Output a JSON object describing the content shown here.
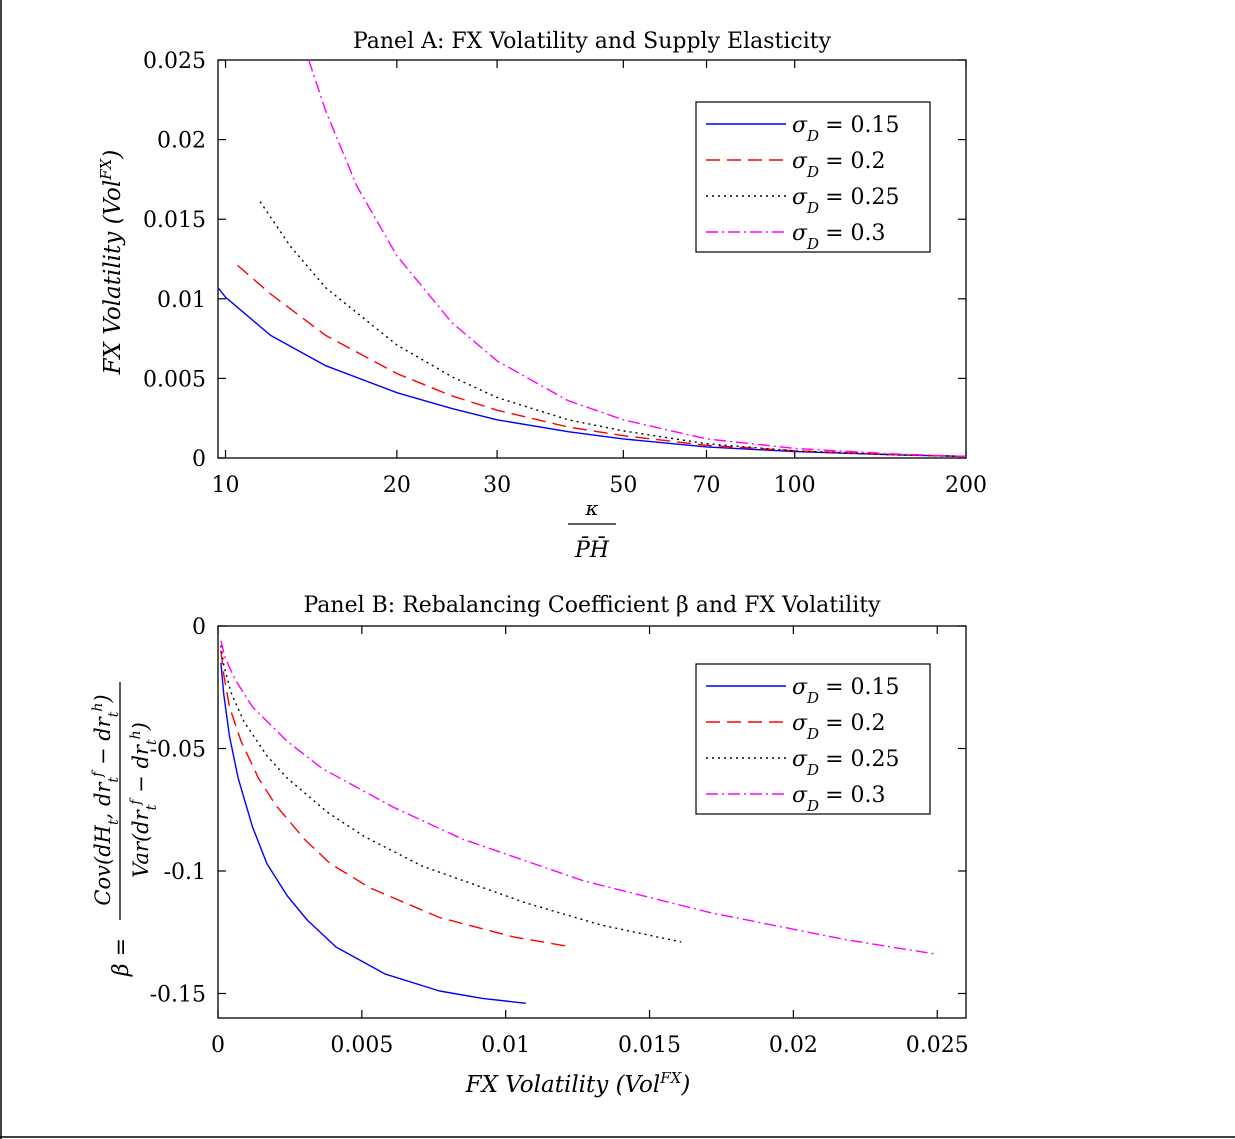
{
  "chart_data": [
    {
      "type": "line",
      "title": "Panel A: FX Volatility and Supply Elasticity",
      "xlabel": "κ / P̄H̄",
      "ylabel": "FX Volatility (Vol^FX)",
      "x_scale": "log",
      "xlim": [
        9.7,
        200
      ],
      "ylim": [
        0,
        0.025
      ],
      "xticks": [
        10,
        20,
        30,
        50,
        70,
        100,
        200
      ],
      "xtick_labels": [
        "10",
        "20",
        "30",
        "50",
        "70",
        "100",
        "200"
      ],
      "yticks": [
        0,
        0.005,
        0.01,
        0.015,
        0.02,
        0.025
      ],
      "ytick_labels": [
        "0",
        "0.005",
        "0.01",
        "0.015",
        "0.02",
        "0.025"
      ],
      "grid": false,
      "legend_position": "top-right",
      "series": [
        {
          "name": "σD = 0.15",
          "color": "#0000ff",
          "dash": "solid",
          "x": [
            9.7,
            10,
            12,
            15,
            20,
            25,
            30,
            40,
            50,
            70,
            100,
            150,
            200
          ],
          "y": [
            0.0107,
            0.0101,
            0.0077,
            0.0058,
            0.0041,
            0.0031,
            0.0024,
            0.00165,
            0.0012,
            0.0007,
            0.0004,
            0.0002,
            0.0001
          ]
        },
        {
          "name": "σD = 0.2",
          "color": "#ff0000",
          "dash": "dashed",
          "x": [
            10.5,
            12,
            15,
            20,
            25,
            30,
            40,
            50,
            70,
            100,
            150,
            200
          ],
          "y": [
            0.0121,
            0.0103,
            0.0077,
            0.0053,
            0.0039,
            0.003,
            0.00195,
            0.0014,
            0.0008,
            0.00045,
            0.0002,
            0.0001
          ]
        },
        {
          "name": "σD = 0.25",
          "color": "#000000",
          "dash": "dotted",
          "x": [
            11.5,
            13,
            15,
            20,
            25,
            30,
            40,
            50,
            70,
            100,
            150,
            200
          ],
          "y": [
            0.0161,
            0.0133,
            0.0107,
            0.0071,
            0.0051,
            0.0038,
            0.0024,
            0.0017,
            0.0009,
            0.00045,
            0.0002,
            0.0001
          ]
        },
        {
          "name": "σD = 0.3",
          "color": "#ff00ff",
          "dash": "dashdot",
          "x": [
            14,
            15,
            17,
            20,
            25,
            30,
            40,
            50,
            70,
            100,
            150,
            200
          ],
          "y": [
            0.025,
            0.0218,
            0.0171,
            0.0127,
            0.0085,
            0.0061,
            0.0036,
            0.0024,
            0.0012,
            0.0006,
            0.00025,
            0.0001
          ]
        }
      ]
    },
    {
      "type": "line",
      "title": "Panel B: Rebalancing Coefficient β and FX Volatility",
      "xlabel": "FX Volatility (Vol^FX)",
      "ylabel": "β = Cov(dHt, drt^f − drt^h) / Var(drt^f − drt^h)",
      "xlim": [
        0,
        0.026
      ],
      "ylim": [
        -0.16,
        0
      ],
      "xticks": [
        0,
        0.005,
        0.01,
        0.015,
        0.02,
        0.025
      ],
      "xtick_labels": [
        "0",
        "0.005",
        "0.01",
        "0.015",
        "0.02",
        "0.025"
      ],
      "yticks": [
        0,
        -0.05,
        -0.1,
        -0.15
      ],
      "ytick_labels": [
        "0",
        "-0.05",
        "-0.1",
        "-0.15"
      ],
      "grid": false,
      "legend_position": "top-right",
      "series": [
        {
          "name": "σD = 0.15",
          "color": "#0000ff",
          "dash": "solid",
          "x": [
            0.0001,
            0.0002,
            0.0004,
            0.0007,
            0.0012,
            0.0017,
            0.0024,
            0.0031,
            0.0041,
            0.0058,
            0.0077,
            0.0092,
            0.0107
          ],
          "y": [
            -0.015,
            -0.028,
            -0.045,
            -0.062,
            -0.082,
            -0.097,
            -0.11,
            -0.12,
            -0.131,
            -0.142,
            -0.149,
            -0.152,
            -0.154
          ]
        },
        {
          "name": "σD = 0.2",
          "color": "#ff0000",
          "dash": "dashed",
          "x": [
            0.0001,
            0.0002,
            0.0004,
            0.0008,
            0.0014,
            0.002,
            0.003,
            0.0039,
            0.0053,
            0.0077,
            0.0103,
            0.0123
          ],
          "y": [
            -0.01,
            -0.02,
            -0.033,
            -0.047,
            -0.062,
            -0.073,
            -0.087,
            -0.097,
            -0.107,
            -0.119,
            -0.127,
            -0.131
          ]
        },
        {
          "name": "σD = 0.25",
          "color": "#000000",
          "dash": "dotted",
          "x": [
            0.0001,
            0.0002,
            0.00045,
            0.0009,
            0.0017,
            0.0024,
            0.0038,
            0.0051,
            0.0071,
            0.0107,
            0.0133,
            0.0161
          ],
          "y": [
            -0.008,
            -0.016,
            -0.027,
            -0.039,
            -0.053,
            -0.062,
            -0.076,
            -0.086,
            -0.098,
            -0.113,
            -0.122,
            -0.129
          ]
        },
        {
          "name": "σD = 0.3",
          "color": "#ff00ff",
          "dash": "dashdot",
          "x": [
            0.0001,
            0.00025,
            0.0006,
            0.0012,
            0.0024,
            0.0036,
            0.0061,
            0.0085,
            0.0127,
            0.0171,
            0.0218,
            0.025
          ],
          "y": [
            -0.006,
            -0.013,
            -0.022,
            -0.033,
            -0.047,
            -0.058,
            -0.074,
            -0.087,
            -0.104,
            -0.117,
            -0.128,
            -0.134
          ]
        }
      ]
    }
  ]
}
